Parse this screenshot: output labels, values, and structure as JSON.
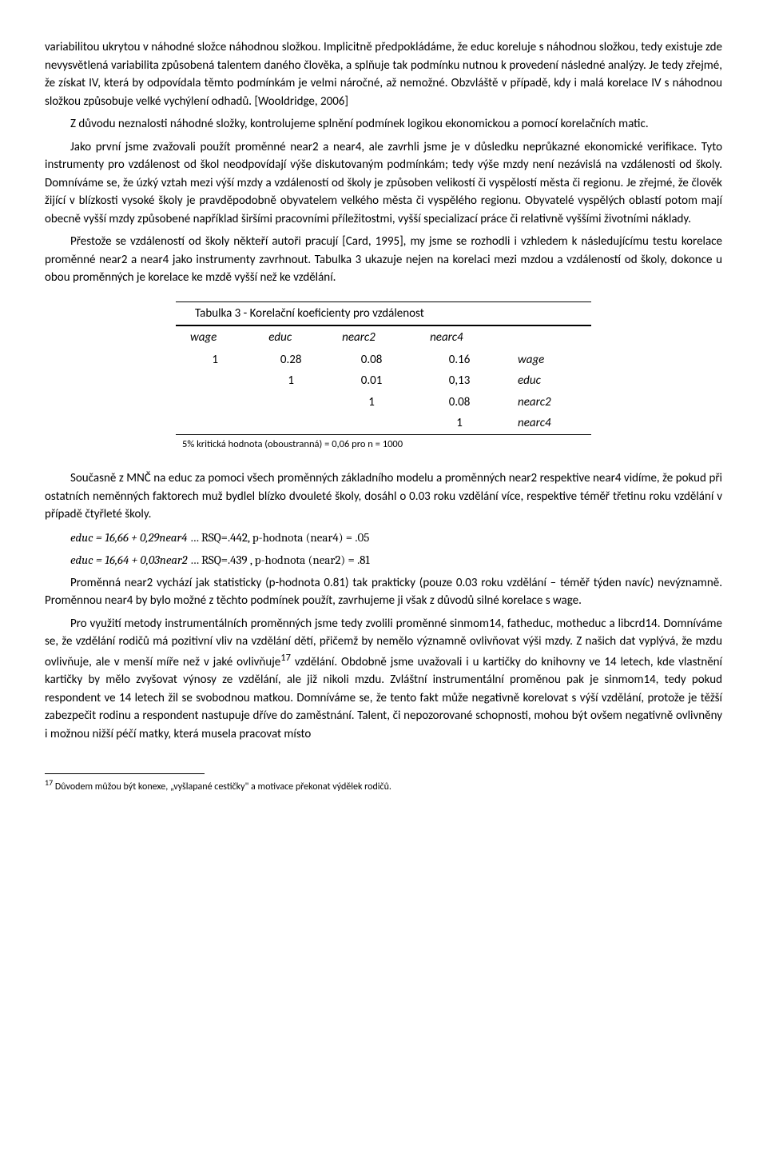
{
  "paragraphs": {
    "p1": "variabilitou ukrytou v náhodné složce náhodnou složkou. Implicitně předpokládáme, že educ koreluje s náhodnou složkou, tedy existuje zde nevysvětlená variabilita způsobená talentem daného člověka, a splňuje tak podmínku nutnou k provedení následné analýzy. Je tedy zřejmé, že získat IV, která by odpovídala těmto podmínkám je velmi náročné, až nemožné. Obzvláště v případě, kdy i malá korelace IV s náhodnou složkou způsobuje velké vychýlení odhadů. [Wooldridge, 2006]",
    "p2": "Z důvodu neznalosti náhodné složky, kontrolujeme splnění podmínek logikou ekonomickou a pomocí korelačních matic.",
    "p3": "Jako první jsme zvažovali použít proměnné near2 a near4, ale zavrhli jsme je v důsledku neprůkazné ekonomické verifikace. Tyto instrumenty pro vzdálenost od škol neodpovídají výše diskutovaným podmínkám; tedy výše mzdy není nezávislá na vzdálenosti od školy. Domníváme se, že úzký vztah mezi výší mzdy a vzdáleností od školy je způsoben velikostí či vyspělostí města či regionu. Je zřejmé, že člověk žijící v blízkosti vysoké školy je pravděpodobně obyvatelem velkého města či vyspělého regionu. Obyvatelé vyspělých oblastí potom mají obecně vyšší mzdy způsobené například širšími pracovními příležitostmi, vyšší specializací práce či relativně vyššími životními náklady.",
    "p4": "Přestože se vzdáleností od školy někteří autoři pracují [Card, 1995], my jsme se rozhodli i vzhledem k následujícímu testu korelace proměnné near2 a near4 jako instrumenty zavrhnout. Tabulka 3 ukazuje nejen na korelaci mezi mzdou a vzdáleností od školy, dokonce u obou proměnných je korelace ke mzdě vyšší než ke vzdělání.",
    "p5": "Současně z MNČ na educ za pomoci všech proměnných základního modelu a proměnných near2 respektive near4 vidíme, že pokud při ostatních neměnných faktorech muž bydlel blízko dvouleté školy, dosáhl o 0.03 roku vzdělání více, respektive téměř třetinu roku vzdělání v případě čtyřleté školy.",
    "p6": "Proměnná near2 vychází jak statisticky (p-hodnota 0.81) tak prakticky (pouze 0.03 roku vzdělání – téměř týden navíc) nevýznamně. Proměnnou near4 by bylo možné z těchto podmínek použít, zavrhujeme ji však z důvodů silné korelace s wage.",
    "p7a": "Pro využití metody instrumentálních proměnných jsme tedy zvolili proměnné sinmom14, fatheduc, motheduc a libcrd14. Domníváme se, že vzdělání rodičů má pozitivní vliv na vzdělání dětí, přičemž by nemělo významně ovlivňovat výši mzdy. Z našich dat vyplývá, že mzdu ovlivňuje, ale v menší míře než v jaké ovlivňuje",
    "p7b": " vzdělání. Obdobně jsme uvažovali i u kartičky do knihovny ve 14 letech, kde vlastnění kartičky by mělo zvyšovat výnosy ze vzdělání, ale již nikoli mzdu. Zvláštní instrumentální proměnou pak je sinmom14, tedy pokud respondent ve 14 letech žil se svobodnou matkou. Domníváme se, že tento fakt může negativně korelovat s výší vzdělání, protože je těžší zabezpečit rodinu a respondent nastupuje dříve do zaměstnání. Talent, či nepozorované schopnosti, mohou být ovšem negativně ovlivněny i možnou nižší péčí matky, která musela pracovat místo"
  },
  "table": {
    "title": "Tabulka 3 - Korelační koeficienty pro vzdálenost",
    "cols": [
      "wage",
      "educ",
      "nearc2",
      "nearc4"
    ],
    "rows": [
      {
        "label": "wage",
        "cells": [
          "1",
          "0.28",
          "0.08",
          "0.16"
        ]
      },
      {
        "label": "educ",
        "cells": [
          "",
          "1",
          "0.01",
          "0,13"
        ]
      },
      {
        "label": "nearc2",
        "cells": [
          "",
          "",
          "1",
          "0.08"
        ]
      },
      {
        "label": "nearc4",
        "cells": [
          "",
          "",
          "",
          "1"
        ]
      }
    ],
    "note": "5% kritická hodnota (oboustranná) = 0,06 pro n = 1000"
  },
  "equations": {
    "eq1_lhs": "educ = 16,66 + 0,29near4",
    "eq1_rhs": " … RSQ=.442, p-hodnota (near4) = .05",
    "eq2_lhs": "educ = 16,64 + 0,03near2",
    "eq2_rhs": " … RSQ=.439 , p-hodnota (near2) = .81"
  },
  "footnote": {
    "num": "17",
    "text": " Důvodem můžou být konexe, „vyšlapané cestičky\" a motivace překonat výdělek rodičů."
  }
}
